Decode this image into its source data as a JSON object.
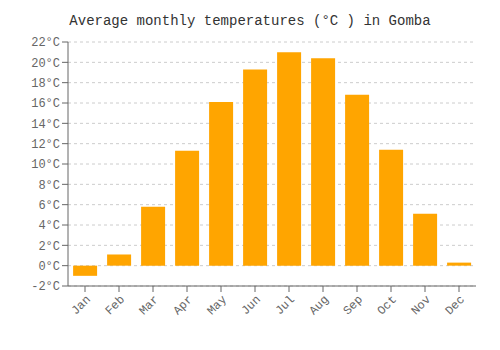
{
  "chart_data": {
    "type": "bar",
    "title": "Average monthly temperatures (°C ) in Gomba",
    "categories": [
      "Jan",
      "Feb",
      "Mar",
      "Apr",
      "May",
      "Jun",
      "Jul",
      "Aug",
      "Sep",
      "Oct",
      "Nov",
      "Dec"
    ],
    "values": [
      -1.0,
      1.1,
      5.8,
      11.3,
      16.1,
      19.3,
      21.0,
      20.4,
      16.8,
      11.4,
      5.1,
      0.3
    ],
    "color": "#FFA500",
    "ylim": [
      -2,
      22
    ],
    "yticks": [
      {
        "value": -2,
        "label": "-2°C"
      },
      {
        "value": 0,
        "label": "0°C"
      },
      {
        "value": 2,
        "label": "2°C"
      },
      {
        "value": 4,
        "label": "4°C"
      },
      {
        "value": 6,
        "label": "6°C"
      },
      {
        "value": 8,
        "label": "8°C"
      },
      {
        "value": 10,
        "label": "10°C"
      },
      {
        "value": 12,
        "label": "12°C"
      },
      {
        "value": 14,
        "label": "14°C"
      },
      {
        "value": 16,
        "label": "16°C"
      },
      {
        "value": 18,
        "label": "18°C"
      },
      {
        "value": 20,
        "label": "20°C"
      },
      {
        "value": 22,
        "label": "22°C"
      }
    ],
    "grid": true
  }
}
